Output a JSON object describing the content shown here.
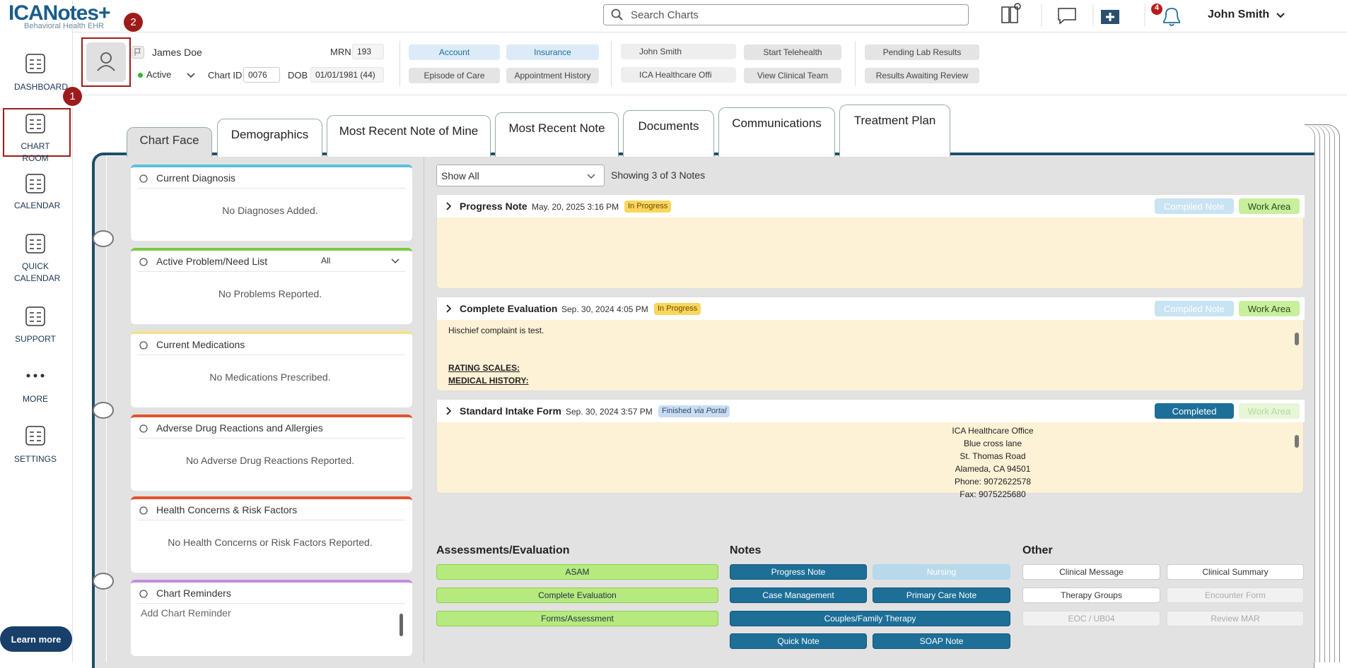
{
  "header": {
    "logo": "ICANotes+",
    "logo_subtitle": "Behavioral Health EHR",
    "search_placeholder": "Search Charts",
    "notification_count": "4",
    "user": "John Smith"
  },
  "sidebar": {
    "items": [
      "DASHBOARD",
      "CHART ROOM",
      "CALENDAR",
      "QUICK CALENDAR",
      "SUPPORT",
      "MORE",
      "SETTINGS"
    ],
    "learn_more": "Learn more"
  },
  "patient": {
    "name": "James Doe",
    "mrn_label": "MRN",
    "mrn": "193",
    "status": "Active",
    "chart_id_label": "Chart ID",
    "chart_id": "0076",
    "dob_label": "DOB",
    "dob": "01/01/1981 (44)",
    "provider": "John Smith",
    "location": "ICA Healthcare Offi",
    "buttons": [
      "Account",
      "Insurance",
      "Episode of Care",
      "Appointment History",
      "Start Telehealth",
      "View Clinical Team",
      "Pending Lab Results",
      "Results Awaiting Review"
    ]
  },
  "tabs": [
    "Chart Face",
    "Demographics",
    "Most Recent Note of Mine",
    "Most Recent Note",
    "Documents",
    "Communications",
    "Treatment Plan"
  ],
  "panels": [
    {
      "title": "Current Diagnosis",
      "empty_text": "No Diagnoses Added."
    },
    {
      "title": "Active Problem/Need List",
      "filter": "All",
      "empty_text": "No Problems Reported."
    },
    {
      "title": "Current Medications",
      "empty_text": "No Medications Prescribed."
    },
    {
      "title": "Adverse Drug Reactions and Allergies",
      "empty_text": "No Adverse Drug Reactions Reported."
    },
    {
      "title": "Health Concerns & Risk Factors",
      "empty_text": "No Health Concerns or Risk Factors Reported."
    },
    {
      "title": "Chart Reminders",
      "placeholder": "Add Chart Reminder"
    }
  ],
  "notes": {
    "filter": "Show All",
    "count_text": "Showing 3 of 3 Notes",
    "items": [
      {
        "title": "Progress Note",
        "date": "May. 20, 2025 3:16 PM",
        "status": "In Progress",
        "actions": [
          "Compiled Note",
          "Work Area"
        ],
        "body": []
      },
      {
        "title": "Complete Evaluation",
        "date": "Sep. 30, 2024 4:05 PM",
        "status": "In Progress",
        "actions": [
          "Compiled Note",
          "Work Area"
        ],
        "body": [
          "Hischief complaint is test.",
          "RATING SCALES:",
          "MEDICAL HISTORY:"
        ]
      },
      {
        "title": "Standard Intake Form",
        "date": "Sep. 30, 2024 3:57 PM",
        "status": "Finished",
        "status_suffix": "via Portal",
        "actions": [
          "Completed",
          "Work Area"
        ],
        "body": [
          "ICA Healthcare Office",
          "Blue cross lane",
          "St. Thomas Road",
          "Alameda, CA 94501",
          "Phone: 9072622578",
          "Fax: 9075225680"
        ]
      }
    ]
  },
  "orders": [
    {
      "heading": "Assessments/Evaluation",
      "buttons": [
        "ASAM",
        "Complete Evaluation",
        "Forms/Assessment"
      ]
    },
    {
      "heading": "Notes",
      "buttons": [
        "Progress Note",
        "Nursing",
        "Case Management",
        "Primary Care Note",
        "Couples/Family Therapy",
        "Quick Note",
        "SOAP Note"
      ]
    },
    {
      "heading": "Other",
      "buttons": [
        "Clinical Message",
        "Clinical Summary",
        "Therapy Groups",
        "Encounter Form",
        "EOC / UB04",
        "Review MAR"
      ]
    }
  ],
  "annotations": [
    "1",
    "2"
  ]
}
